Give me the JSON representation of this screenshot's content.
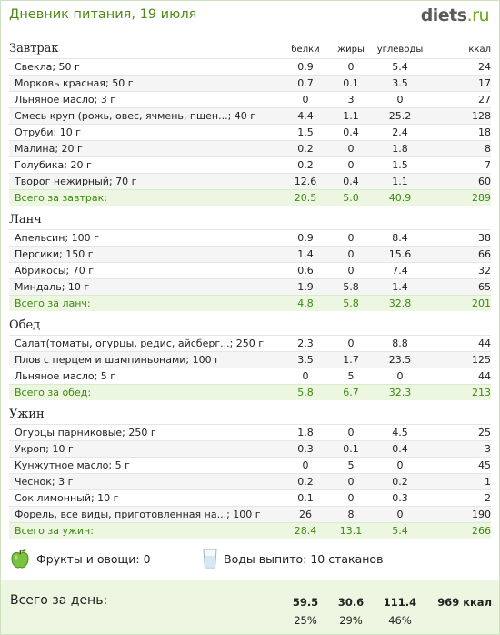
{
  "header": {
    "title": "Дневник питания, 19 июля",
    "logo_name": "diets",
    "logo_tld": ".ru"
  },
  "columns": [
    "белки",
    "жиры",
    "углеводы",
    "ккал"
  ],
  "sections": [
    {
      "title": "Завтрак",
      "items": [
        {
          "name": "Свекла; 50 г",
          "b": "0.9",
          "f": "0",
          "c": "5.4",
          "k": "24"
        },
        {
          "name": "Морковь красная; 50 г",
          "b": "0.7",
          "f": "0.1",
          "c": "3.5",
          "k": "17"
        },
        {
          "name": "Льняное масло; 3 г",
          "b": "0",
          "f": "3",
          "c": "0",
          "k": "27"
        },
        {
          "name": "Смесь круп (рожь, овес, ячмень, пшен...; 40 г",
          "b": "4.4",
          "f": "1.1",
          "c": "25.2",
          "k": "128"
        },
        {
          "name": "Отруби; 10 г",
          "b": "1.5",
          "f": "0.4",
          "c": "2.4",
          "k": "18"
        },
        {
          "name": "Малина; 20 г",
          "b": "0.2",
          "f": "0",
          "c": "1.8",
          "k": "8"
        },
        {
          "name": "Голубика; 20 г",
          "b": "0.2",
          "f": "0",
          "c": "1.5",
          "k": "7"
        },
        {
          "name": "Творог нежирный; 70 г",
          "b": "12.6",
          "f": "0.4",
          "c": "1.1",
          "k": "60"
        }
      ],
      "total": {
        "label": "Всего за завтрак:",
        "b": "20.5",
        "f": "5.0",
        "c": "40.9",
        "k": "289"
      }
    },
    {
      "title": "Ланч",
      "items": [
        {
          "name": "Апельсин; 100 г",
          "b": "0.9",
          "f": "0",
          "c": "8.4",
          "k": "38"
        },
        {
          "name": "Персики; 150 г",
          "b": "1.4",
          "f": "0",
          "c": "15.6",
          "k": "66"
        },
        {
          "name": "Абрикосы; 70 г",
          "b": "0.6",
          "f": "0",
          "c": "7.4",
          "k": "32"
        },
        {
          "name": "Миндаль; 10 г",
          "b": "1.9",
          "f": "5.8",
          "c": "1.4",
          "k": "65"
        }
      ],
      "total": {
        "label": "Всего за ланч:",
        "b": "4.8",
        "f": "5.8",
        "c": "32.8",
        "k": "201"
      }
    },
    {
      "title": "Обед",
      "items": [
        {
          "name": "Салат(томаты, огурцы, редис, айсберг...; 250 г",
          "b": "2.3",
          "f": "0",
          "c": "8.8",
          "k": "44"
        },
        {
          "name": "Плов с перцем и шампиньонами; 100 г",
          "b": "3.5",
          "f": "1.7",
          "c": "23.5",
          "k": "125"
        },
        {
          "name": "Льняное масло; 5 г",
          "b": "0",
          "f": "5",
          "c": "0",
          "k": "44"
        }
      ],
      "total": {
        "label": "Всего за обед:",
        "b": "5.8",
        "f": "6.7",
        "c": "32.3",
        "k": "213"
      }
    },
    {
      "title": "Ужин",
      "items": [
        {
          "name": "Огурцы парниковые; 250 г",
          "b": "1.8",
          "f": "0",
          "c": "4.5",
          "k": "25"
        },
        {
          "name": "Укроп; 10 г",
          "b": "0.3",
          "f": "0.1",
          "c": "0.4",
          "k": "3"
        },
        {
          "name": "Кунжутное масло; 5 г",
          "b": "0",
          "f": "5",
          "c": "0",
          "k": "45"
        },
        {
          "name": "Чеснок; 3 г",
          "b": "0.2",
          "f": "0",
          "c": "0.2",
          "k": "1"
        },
        {
          "name": "Сок лимонный; 10 г",
          "b": "0.1",
          "f": "0",
          "c": "0.3",
          "k": "2"
        },
        {
          "name": "Форель, все виды, приготовленная на...; 100 г",
          "b": "26",
          "f": "8",
          "c": "0",
          "k": "190"
        }
      ],
      "total": {
        "label": "Всего за ужин:",
        "b": "28.4",
        "f": "13.1",
        "c": "5.4",
        "k": "266"
      }
    }
  ],
  "extras": {
    "fruits": {
      "icon": "green-apple-icon",
      "label": "Фрукты и овощи: 0"
    },
    "water": {
      "icon": "water-glass-icon",
      "label": "Воды выпито: 10 стаканов"
    }
  },
  "day_total": {
    "label": "Всего за день:",
    "b": "59.5",
    "f": "30.6",
    "c": "111.4",
    "k": "969 ккал",
    "b_pct": "25%",
    "f_pct": "29%",
    "c_pct": "46%"
  },
  "colors": {
    "accent_green": "#4d8a14",
    "total_green": "#3c8a10",
    "total_bg": "#ecf6e1"
  }
}
